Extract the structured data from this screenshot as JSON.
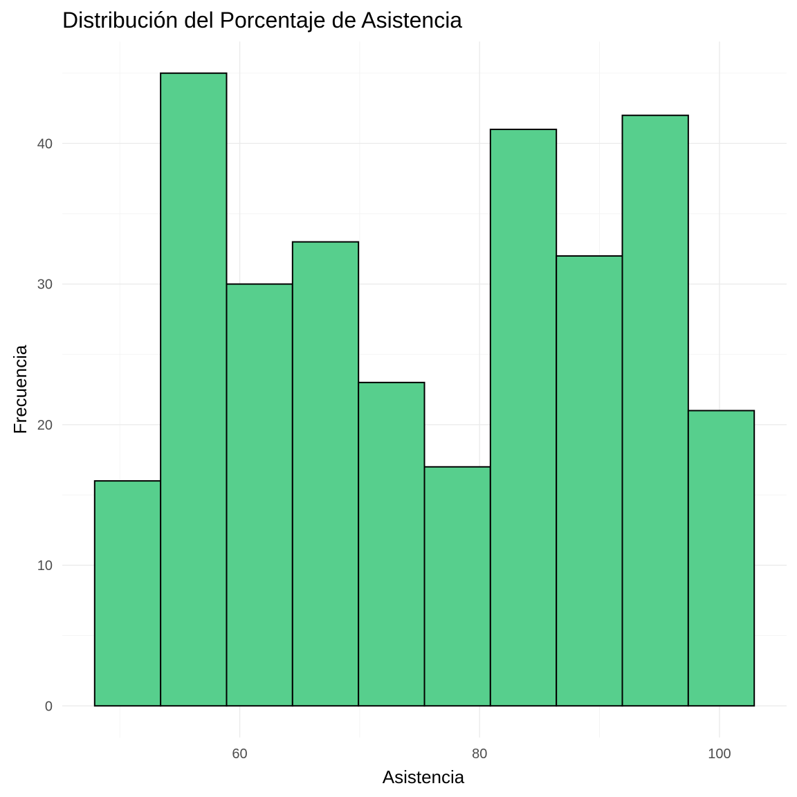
{
  "chart_data": {
    "type": "bar",
    "title": "Distribución del Porcentaje de Asistencia",
    "xlabel": "Asistencia",
    "ylabel": "Frecuencia",
    "fill_color": "#57CF8D",
    "bins": [
      {
        "x0": 47.9,
        "x1": 53.4,
        "count": 16
      },
      {
        "x0": 53.4,
        "x1": 58.9,
        "count": 45
      },
      {
        "x0": 58.9,
        "x1": 64.4,
        "count": 30
      },
      {
        "x0": 64.4,
        "x1": 69.9,
        "count": 33
      },
      {
        "x0": 69.9,
        "x1": 75.4,
        "count": 23
      },
      {
        "x0": 75.4,
        "x1": 80.9,
        "count": 17
      },
      {
        "x0": 80.9,
        "x1": 86.4,
        "count": 41
      },
      {
        "x0": 86.4,
        "x1": 91.9,
        "count": 32
      },
      {
        "x0": 91.9,
        "x1": 97.4,
        "count": 42
      },
      {
        "x0": 97.4,
        "x1": 102.9,
        "count": 21
      }
    ],
    "xlim": [
      45.2,
      105.6
    ],
    "ylim": [
      -2.25,
      47.25
    ],
    "x_ticks": [
      60,
      80,
      100
    ],
    "x_minor_ticks": [
      50,
      70,
      90
    ],
    "y_ticks": [
      0,
      10,
      20,
      30,
      40
    ],
    "y_minor_ticks": [
      5,
      15,
      25,
      35,
      45
    ]
  }
}
